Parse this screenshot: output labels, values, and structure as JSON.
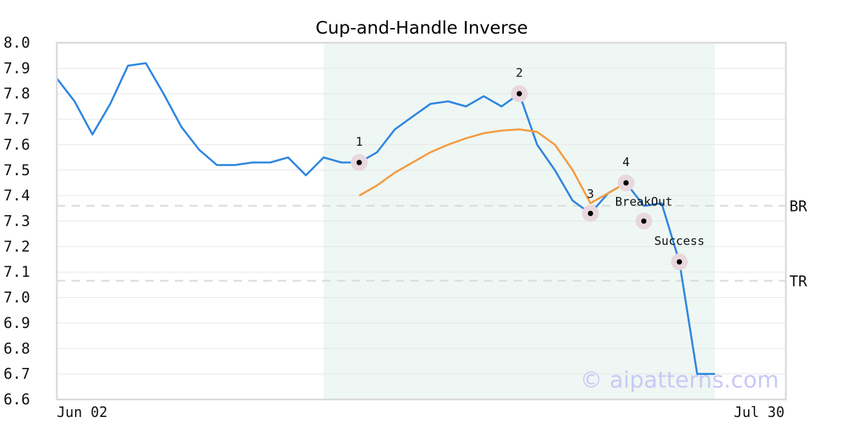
{
  "chart_data": {
    "type": "line",
    "title": "Cup-and-Handle Inverse",
    "xlabel": "",
    "ylabel": "",
    "ylim": [
      6.6,
      8.0
    ],
    "yticks": [
      "8.0",
      "7.9",
      "7.8",
      "7.7",
      "7.6",
      "7.5",
      "7.4",
      "7.3",
      "7.2",
      "7.1",
      "7.0",
      "6.9",
      "6.8",
      "6.7",
      "6.6"
    ],
    "x_tick_labels": [
      "Jun 02",
      "Jul 30"
    ],
    "x_range": [
      "Jun 02",
      "Jul 30"
    ],
    "grid": "horizontal",
    "highlight_range": {
      "x_start": 15,
      "x_end": 37,
      "color": "#eef7f3"
    },
    "series": [
      {
        "color": "#2f86e0",
        "x": [
          0,
          1,
          2,
          3,
          4,
          5,
          6,
          7,
          8,
          9,
          10,
          11,
          12,
          13,
          14,
          15,
          16,
          17,
          18,
          19,
          20,
          21,
          22,
          23,
          24,
          25,
          26,
          27,
          28,
          29,
          30,
          31,
          32,
          33,
          34,
          35,
          36,
          37
        ],
        "values": [
          7.86,
          7.77,
          7.64,
          7.76,
          7.91,
          7.92,
          7.8,
          7.67,
          7.58,
          7.52,
          7.52,
          7.53,
          7.53,
          7.55,
          7.48,
          7.55,
          7.53,
          7.53,
          7.57,
          7.66,
          7.71,
          7.76,
          7.77,
          7.75,
          7.79,
          7.75,
          7.8,
          7.6,
          7.5,
          7.38,
          7.33,
          7.41,
          7.45,
          7.36,
          7.37,
          7.14,
          6.7,
          6.7
        ]
      },
      {
        "color": "#f59b42",
        "x": [
          17,
          18,
          19,
          20,
          21,
          22,
          23,
          24,
          25,
          26,
          27,
          28,
          29,
          30,
          31,
          32
        ],
        "values": [
          7.4,
          7.44,
          7.49,
          7.53,
          7.57,
          7.6,
          7.625,
          7.645,
          7.655,
          7.66,
          7.65,
          7.6,
          7.5,
          7.37,
          7.41,
          7.45
        ]
      }
    ],
    "levels": [
      {
        "label": "BR",
        "value": 7.36
      },
      {
        "label": "TR",
        "value": 7.066
      }
    ],
    "annotations": [
      {
        "label": "1",
        "x": 17,
        "y": 7.53
      },
      {
        "label": "2",
        "x": 26,
        "y": 7.8
      },
      {
        "label": "3",
        "x": 30,
        "y": 7.33
      },
      {
        "label": "4",
        "x": 32,
        "y": 7.45
      },
      {
        "label": "BreakOut",
        "x": 33,
        "y": 7.3
      },
      {
        "label": "Success",
        "x": 35,
        "y": 7.14
      }
    ],
    "marker_halo_color": "#e8d8de",
    "watermark": "© aipatterns.com"
  }
}
